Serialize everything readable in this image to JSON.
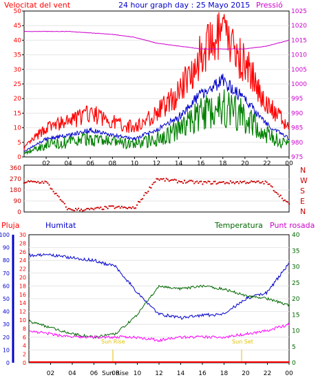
{
  "top": {
    "title_wind": "Velocitat del vent",
    "title_main": "24 hour graph day : 25 Mayo 2015",
    "title_pressure": "Pressió",
    "wind_ticks": [
      "0",
      "5",
      "10",
      "15",
      "20",
      "25",
      "30",
      "35",
      "40",
      "45",
      "50"
    ],
    "pressure_ticks": [
      "975",
      "980",
      "985",
      "990",
      "995",
      "1000",
      "1005",
      "1010",
      "1015",
      "1020",
      "1025"
    ],
    "hour_ticks": [
      "02",
      "04",
      "06",
      "08",
      "10",
      "12",
      "14",
      "16",
      "18",
      "20",
      "22",
      "00"
    ]
  },
  "middle": {
    "deg_ticks": [
      "360",
      "270",
      "180",
      "90",
      "0"
    ],
    "compass": [
      "N",
      "W",
      "S",
      "E",
      "N"
    ]
  },
  "bottom": {
    "title_rain": "Pluja",
    "title_humidity": "Humitat",
    "title_temp": "Temperatura",
    "title_dew": "Punt rosada",
    "humidity_ticks": [
      "0",
      "10",
      "20",
      "30",
      "40",
      "50",
      "60",
      "70",
      "80",
      "90",
      "100"
    ],
    "rain_ticks": [
      "0",
      "2",
      "4",
      "6",
      "8",
      "10",
      "12",
      "14",
      "16",
      "18",
      "20",
      "22",
      "24",
      "26",
      "28",
      "30"
    ],
    "temp_ticks": [
      "0",
      "5",
      "10",
      "15",
      "20",
      "25",
      "30",
      "35",
      "40"
    ],
    "sunrise": "Sun Rise",
    "sunset": "Sun Set",
    "hour_ticks": [
      "02",
      "04",
      "06",
      "08",
      "10",
      "12",
      "14",
      "16",
      "18",
      "20",
      "22",
      "00"
    ],
    "sunrise_tick": "Sun Rise"
  },
  "colors": {
    "gust": "#ff0000",
    "wind_avg": "#0000cc",
    "wind_low": "#008000",
    "pressure": "#cc00cc",
    "direction": "#cc0000",
    "humidity": "#0000cc",
    "temperature": "#006600",
    "dew": "#ff00ff",
    "sun": "#e0c000"
  },
  "chart_data": [
    {
      "type": "line",
      "title": "24 hour graph day : 25 Mayo 2015",
      "x": [
        "00",
        "02",
        "04",
        "06",
        "08",
        "10",
        "12",
        "14",
        "16",
        "18",
        "20",
        "22",
        "00"
      ],
      "series": [
        {
          "name": "Velocitat del vent",
          "values": [
            3,
            10,
            12,
            15,
            12,
            10,
            15,
            22,
            35,
            42,
            32,
            18,
            10
          ]
        },
        {
          "name": "Pressió",
          "values": [
            1018,
            1018,
            1018,
            1017.5,
            1017,
            1016,
            1014,
            1013,
            1012,
            1012,
            1012,
            1013,
            1015
          ]
        }
      ],
      "ylim": [
        0,
        50
      ],
      "y2lim": [
        975,
        1025
      ]
    },
    {
      "type": "scatter",
      "x": [
        "00",
        "02",
        "04",
        "06",
        "08",
        "10",
        "12",
        "14",
        "16",
        "18",
        "20",
        "22",
        "00"
      ],
      "series": [
        {
          "values": [
            245,
            245,
            20,
            20,
            40,
            30,
            270,
            250,
            240,
            240,
            245,
            240,
            60
          ]
        }
      ],
      "ylim": [
        0,
        360
      ]
    },
    {
      "type": "line",
      "x": [
        "00",
        "02",
        "04",
        "06",
        "08",
        "10",
        "12",
        "14",
        "16",
        "18",
        "20",
        "22",
        "00"
      ],
      "series": [
        {
          "name": "Humitat",
          "values": [
            84,
            84,
            82,
            80,
            75,
            55,
            38,
            35,
            37,
            38,
            50,
            55,
            78
          ]
        },
        {
          "name": "Temperatura",
          "values": [
            13,
            11,
            9,
            8,
            9,
            15,
            24,
            23,
            24,
            23,
            21,
            20,
            18
          ]
        },
        {
          "name": "Punt rosada",
          "values": [
            10,
            9,
            8,
            8,
            8,
            8,
            7,
            8,
            8,
            8,
            9,
            10,
            12
          ]
        }
      ],
      "ylim": [
        0,
        100
      ],
      "y2lim": [
        0,
        40
      ]
    }
  ]
}
